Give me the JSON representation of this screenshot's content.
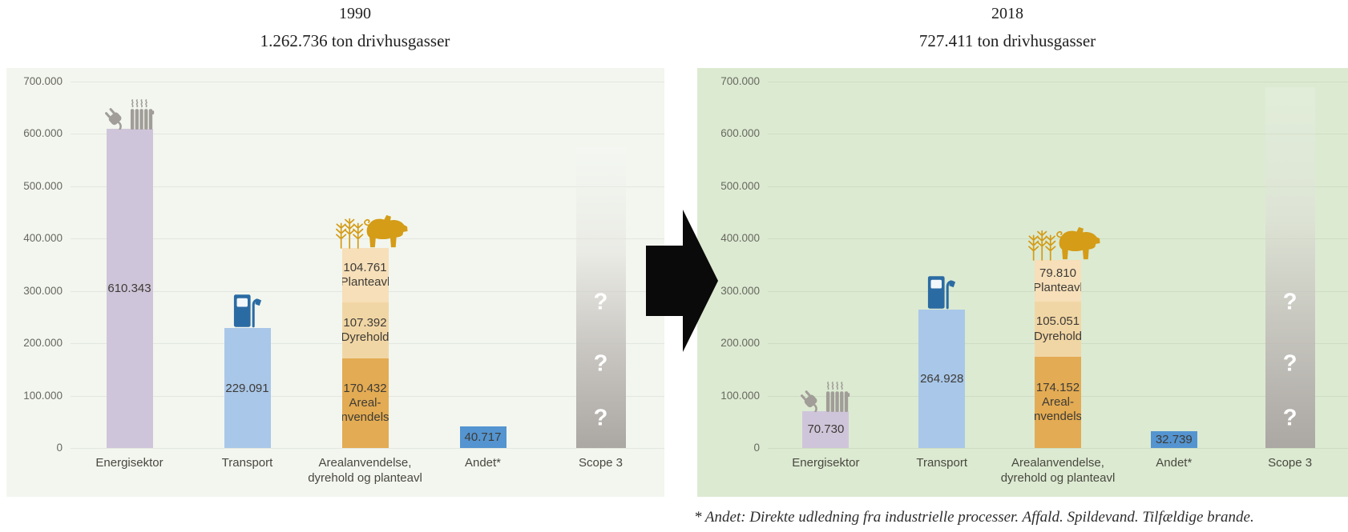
{
  "footnote": "* Andet: Direkte udledning fra industrielle processer. Affald. Spildevand. Tilfældige brande.",
  "colors": {
    "page_background": "#ffffff",
    "arrow": "#0a0a0a",
    "axis_text": "#68685f",
    "label_text": "#3d3b36",
    "scope_gray": "#aba7a3",
    "question_mark": "#ffffff",
    "icon_gray": "#a19d98",
    "icon_gold": "#d49c17",
    "icon_pump_blue": "#2b6ba3",
    "title_text": "#1f1f1f"
  },
  "chart_data": [
    {
      "type": "bar",
      "title": "1990",
      "subtitle": "1.262.736 ton drivhusgasser",
      "ylim": [
        0,
        700000
      ],
      "ytick_step": 100000,
      "yticks": [
        "0",
        "100.000",
        "200.000",
        "300.000",
        "400.000",
        "500.000",
        "600.000",
        "700.000"
      ],
      "grid": true,
      "legend": "none",
      "background": "#f2f6ef",
      "grid_color": "#e4e7de",
      "bars": [
        {
          "category_lines": [
            "Energisektor"
          ],
          "value": 610343,
          "label": "610.343",
          "color": "#cfc5da",
          "icon": "plug-radiator"
        },
        {
          "category_lines": [
            "Transport"
          ],
          "value": 229091,
          "label": "229.091",
          "color": "#a9c7e9",
          "icon": "fuel-pump"
        },
        {
          "category_lines": [
            "Arealanvendelse,",
            "dyrehold og planteavl"
          ],
          "icon": "wheat-pig",
          "segments": [
            {
              "name": "Planteavl",
              "value": 104761,
              "label_lines": [
                "104.761",
                "Planteavl"
              ],
              "color": "#f6dfb9"
            },
            {
              "name": "Dyrehold",
              "value": 107392,
              "label_lines": [
                "107.392",
                "Dyrehold"
              ],
              "color": "#f1d6a5"
            },
            {
              "name": "Areal-anvendelse",
              "value": 170432,
              "label_lines": [
                "170.432",
                "Areal-",
                "anvendelse"
              ],
              "color": "#e3ab53"
            }
          ]
        },
        {
          "category_lines": [
            "Andet*"
          ],
          "value": 40717,
          "label": "40.717",
          "color": "#5494d0"
        },
        {
          "category_lines": [
            "Scope 3"
          ],
          "value": null,
          "unknown": true,
          "question_marks": [
            "?",
            "?",
            "?"
          ],
          "question_values": [
            278000,
            160000,
            56000
          ],
          "bar_top_value": 575000
        }
      ]
    },
    {
      "type": "bar",
      "title": "2018",
      "subtitle": "727.411 ton drivhusgasser",
      "ylim": [
        0,
        700000
      ],
      "ytick_step": 100000,
      "yticks": [
        "0",
        "100.000",
        "200.000",
        "300.000",
        "400.000",
        "500.000",
        "600.000",
        "700.000"
      ],
      "grid": true,
      "legend": "none",
      "background": "#dcead2",
      "grid_color": "#cddcc1",
      "bars": [
        {
          "category_lines": [
            "Energisektor"
          ],
          "value": 70730,
          "label": "70.730",
          "color": "#cfc5da",
          "icon": "plug-radiator"
        },
        {
          "category_lines": [
            "Transport"
          ],
          "value": 264928,
          "label": "264.928",
          "color": "#a9c7e9",
          "icon": "fuel-pump"
        },
        {
          "category_lines": [
            "Arealanvendelse,",
            "dyrehold og planteavl"
          ],
          "icon": "wheat-pig",
          "segments": [
            {
              "name": "Planteavl",
              "value": 79810,
              "label_lines": [
                "79.810",
                "Planteavl"
              ],
              "color": "#f6dfb9"
            },
            {
              "name": "Dyrehold",
              "value": 105051,
              "label_lines": [
                "105.051",
                "Dyrehold"
              ],
              "color": "#f1d6a5"
            },
            {
              "name": "Areal-anvendelse",
              "value": 174152,
              "label_lines": [
                "174.152",
                "Areal-",
                "anvendelse"
              ],
              "color": "#e3ab53"
            }
          ]
        },
        {
          "category_lines": [
            "Andet*"
          ],
          "value": 32739,
          "label": "32.739",
          "color": "#5494d0"
        },
        {
          "category_lines": [
            "Scope 3"
          ],
          "value": null,
          "unknown": true,
          "question_marks": [
            "?",
            "?",
            "?"
          ],
          "question_values": [
            278000,
            160000,
            56000
          ],
          "bar_top_value": 690000
        }
      ]
    }
  ]
}
